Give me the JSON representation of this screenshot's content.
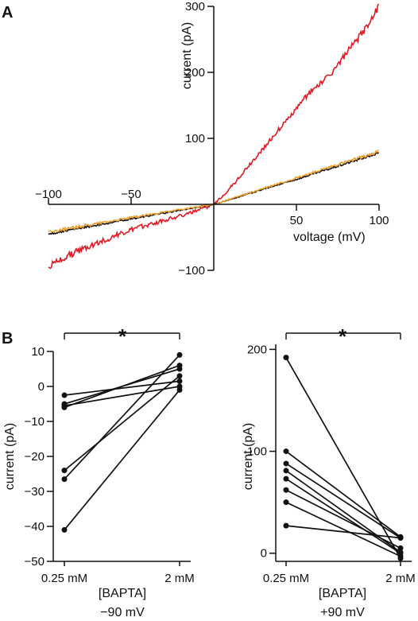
{
  "panel_labels": {
    "a": "A",
    "b": "B"
  },
  "colors": {
    "red": "#e01b22",
    "orange": "#eda02b",
    "black": "#111111"
  },
  "chart_data": [
    {
      "type": "line",
      "panel": "A",
      "xlabel": "voltage (mV)",
      "ylabel": "current (pA)",
      "xlim": [
        -100,
        100
      ],
      "ylim": [
        -100,
        300
      ],
      "x_ticks": [
        -100,
        -50,
        50,
        100
      ],
      "x_tick_labels": [
        "−100",
        "−50",
        "50",
        "100"
      ],
      "y_ticks": [
        -100,
        100,
        200,
        300
      ],
      "y_tick_labels": [
        "−100",
        "100",
        "200",
        "300"
      ],
      "grid": false,
      "series": [
        {
          "color": "#e01b22",
          "x": [
            -100,
            -90,
            -80,
            -70,
            -60,
            -50,
            -40,
            -30,
            -20,
            -10,
            0,
            10,
            20,
            30,
            40,
            50,
            60,
            70,
            80,
            90,
            100
          ],
          "y": [
            -95,
            -80,
            -68,
            -58,
            -48,
            -39,
            -31,
            -24,
            -17,
            -10,
            0,
            25,
            55,
            85,
            115,
            145,
            175,
            195,
            228,
            260,
            300
          ]
        },
        {
          "color": "#111111",
          "x": [
            -100,
            -50,
            0,
            50,
            100
          ],
          "y": [
            -45,
            -22,
            0,
            38,
            78
          ]
        },
        {
          "color": "#eda02b",
          "x": [
            -100,
            -50,
            0,
            50,
            100
          ],
          "y": [
            -42,
            -20,
            0,
            40,
            80
          ]
        }
      ]
    },
    {
      "type": "line",
      "panel": "B-left",
      "categories": [
        "0.25 mM",
        "2 mM"
      ],
      "xlabel": "[BAPTA]",
      "xlabel2": "−90 mV",
      "ylabel": "current (pA)",
      "ylim": [
        -50,
        10
      ],
      "y_ticks": [
        10,
        0,
        -10,
        -20,
        -30,
        -40,
        -50
      ],
      "y_tick_labels": [
        "10",
        "0",
        "−10",
        "−20",
        "−30",
        "−40",
        "−50"
      ],
      "significance": "*",
      "series": [
        {
          "values": [
            -2.5,
            1.5
          ]
        },
        {
          "values": [
            -5.0,
            5.0
          ]
        },
        {
          "values": [
            -6.0,
            6.0
          ]
        },
        {
          "values": [
            -24.0,
            3.0
          ]
        },
        {
          "values": [
            -26.5,
            9.0
          ]
        },
        {
          "values": [
            -41.0,
            -1.0
          ]
        },
        {
          "values": [
            -5.5,
            0.0
          ]
        }
      ]
    },
    {
      "type": "line",
      "panel": "B-right",
      "categories": [
        "0.25 mM",
        "2 mM"
      ],
      "xlabel": "[BAPTA]",
      "xlabel2": "+90 mV",
      "ylabel": "current (pA)",
      "ylim": [
        -8,
        205
      ],
      "y_ticks": [
        200,
        100,
        0
      ],
      "y_tick_labels": [
        "200",
        "100",
        "0"
      ],
      "significance": "*",
      "series": [
        {
          "values": [
            192,
            -5
          ]
        },
        {
          "values": [
            100,
            16
          ]
        },
        {
          "values": [
            88,
            15
          ]
        },
        {
          "values": [
            81,
            1
          ]
        },
        {
          "values": [
            73,
            0
          ]
        },
        {
          "values": [
            62,
            5
          ]
        },
        {
          "values": [
            50,
            -3
          ]
        },
        {
          "values": [
            27,
            15
          ]
        }
      ]
    }
  ]
}
